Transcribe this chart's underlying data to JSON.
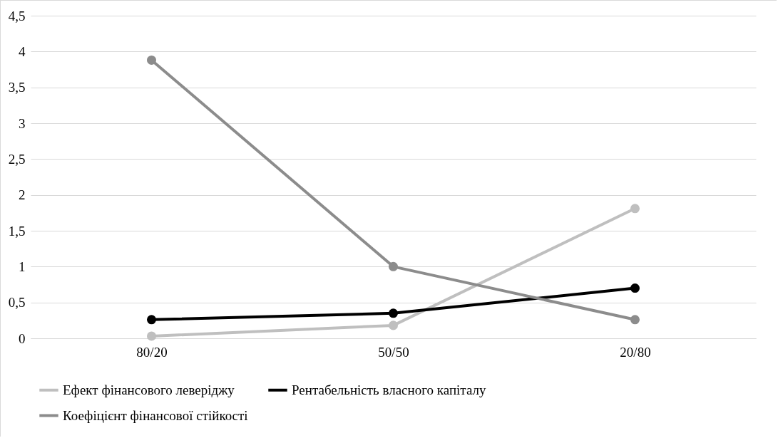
{
  "chart_data": {
    "type": "line",
    "categories": [
      "80/20",
      "50/50",
      "20/80"
    ],
    "series": [
      {
        "name": "Ефект фінансового леверіджу",
        "color": "#bfbfbf",
        "values": [
          0.03,
          0.18,
          1.81
        ]
      },
      {
        "name": "Рентабельність власного капіталу",
        "color": "#000000",
        "values": [
          0.26,
          0.35,
          0.7
        ]
      },
      {
        "name": "Коефіцієнт фінансової стійкості",
        "color": "#8c8c8c",
        "values": [
          3.88,
          1.0,
          0.26
        ]
      }
    ],
    "ylim": [
      0,
      4.5
    ],
    "yticks": [
      0,
      {
        "value": 0.5,
        "label": "0,5"
      },
      1,
      {
        "value": 1.5,
        "label": "1,5"
      },
      2,
      {
        "value": 2.5,
        "label": "2,5"
      },
      3,
      {
        "value": 3.5,
        "label": "3,5"
      },
      4,
      {
        "value": 4.5,
        "label": "4,5"
      }
    ],
    "grid": "y",
    "legend": "bottom",
    "marker": "circle",
    "line_style": "solid"
  }
}
